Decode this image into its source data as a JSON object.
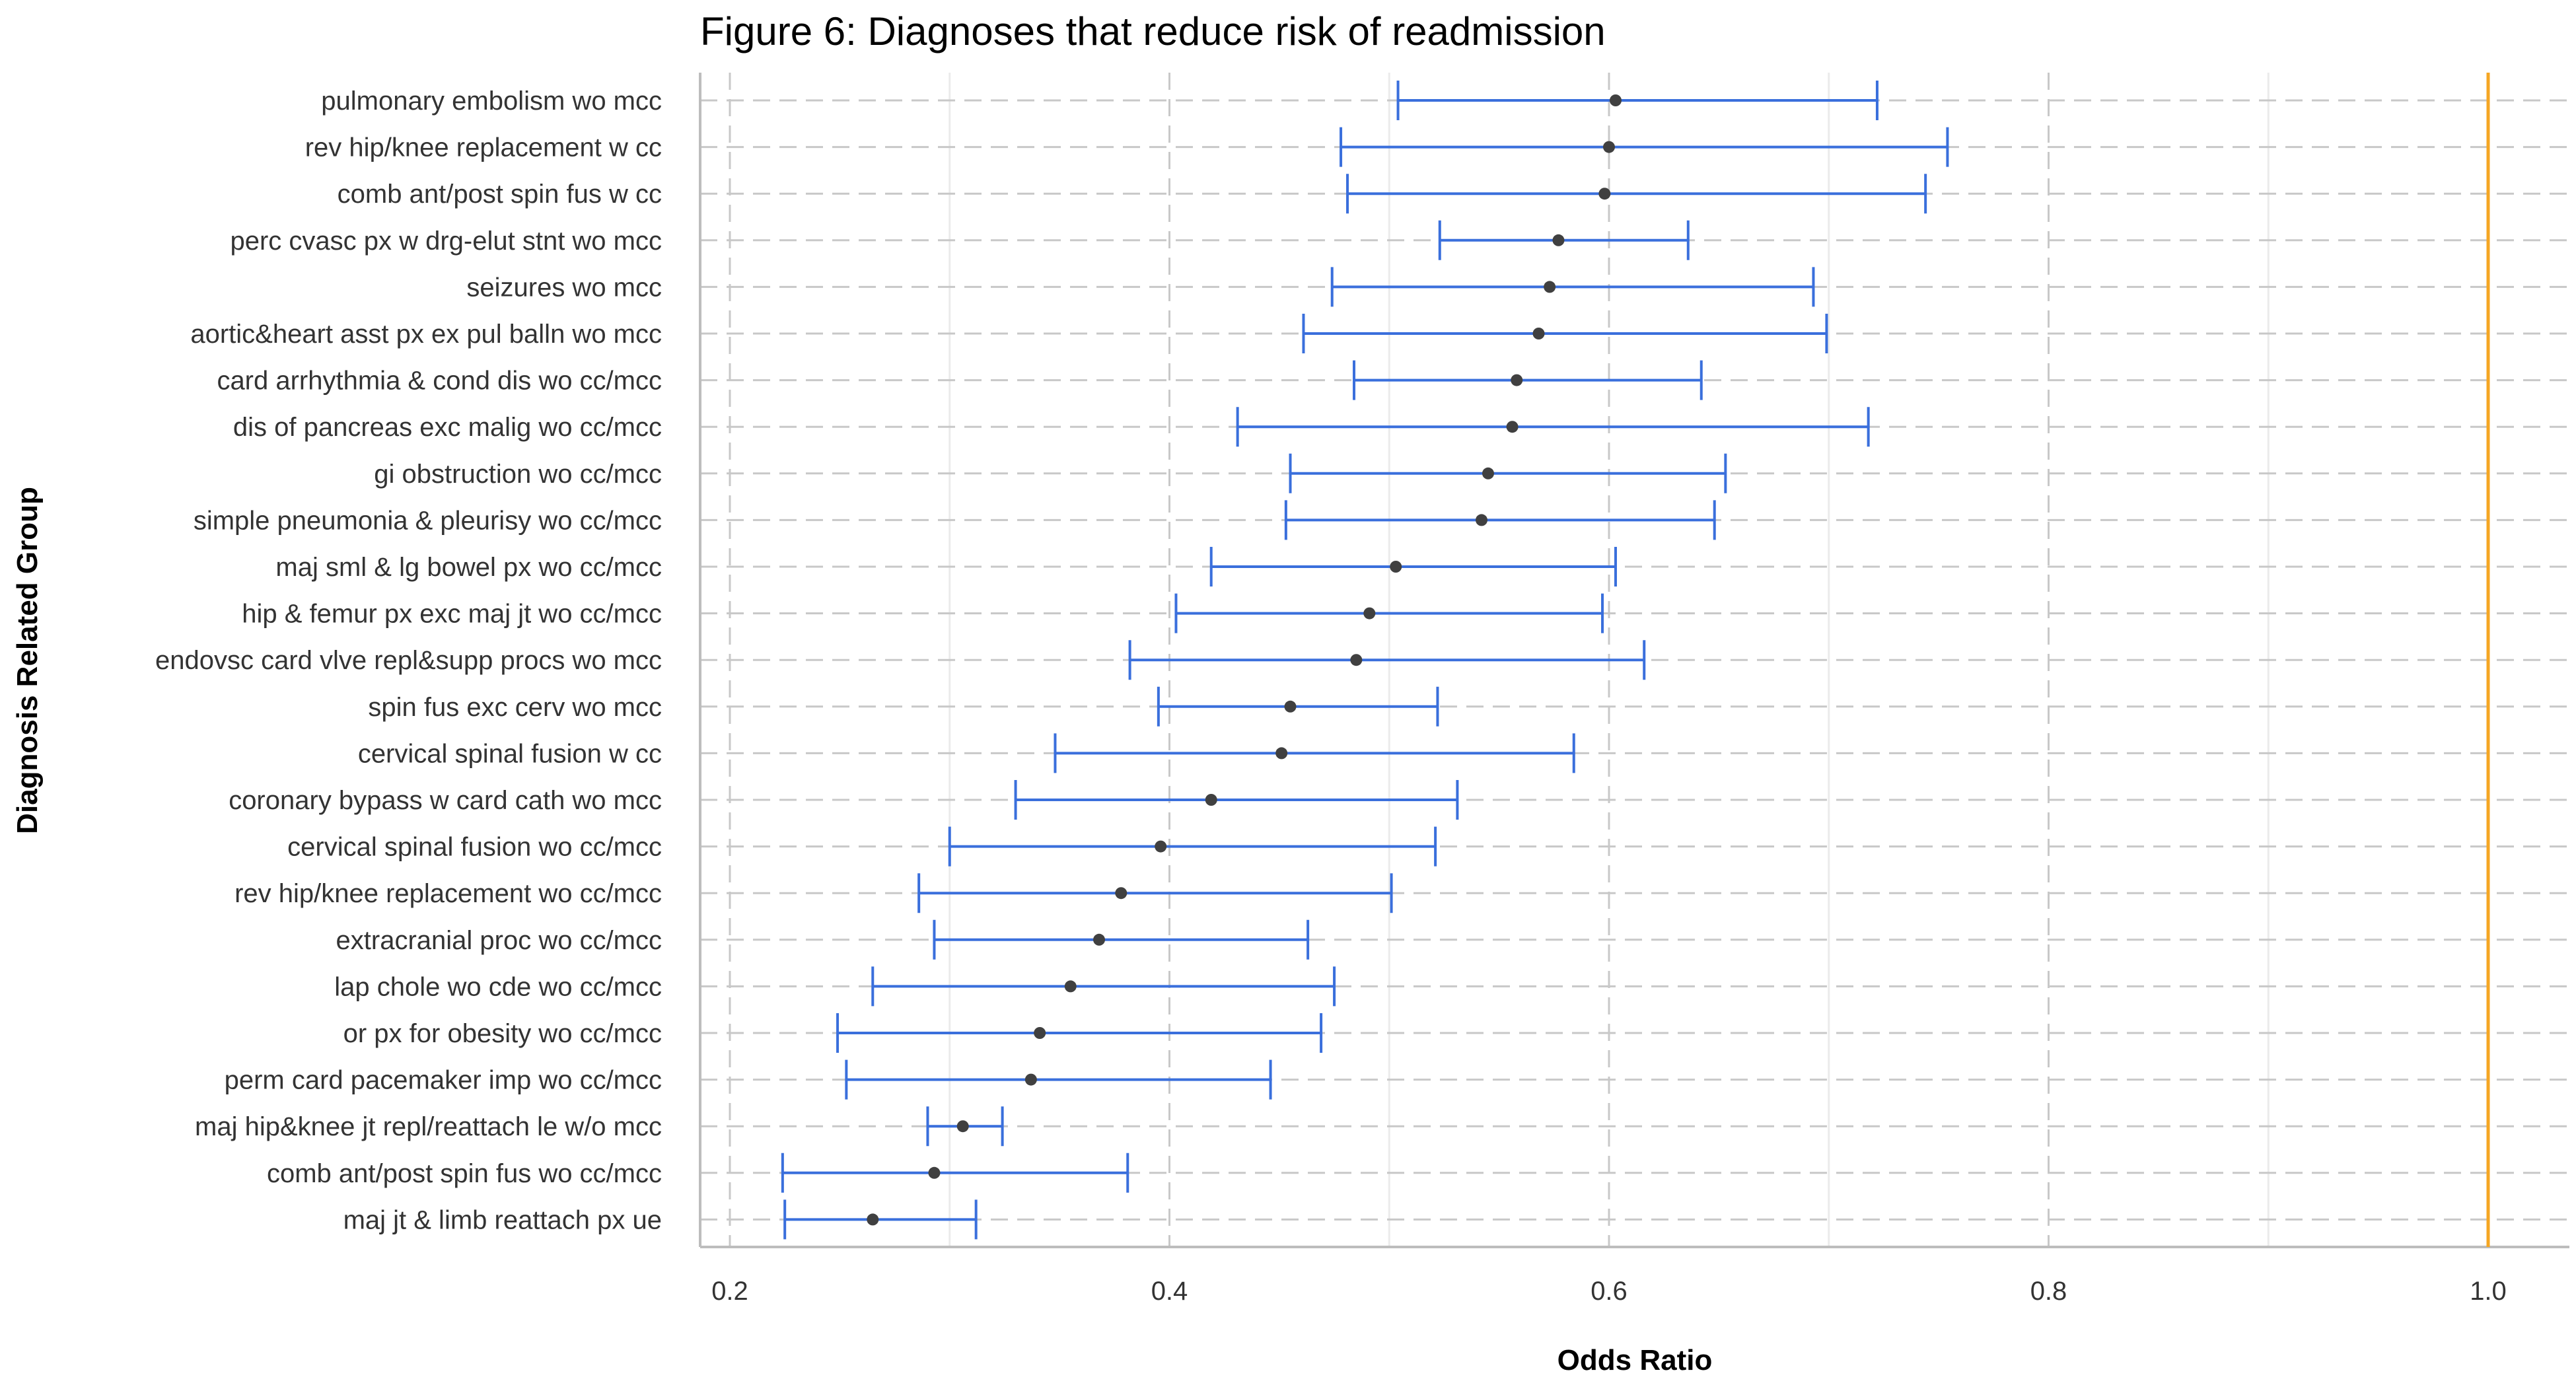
{
  "chart_data": {
    "type": "forest",
    "title": "Figure 6: Diagnoses that reduce risk of readmission",
    "xlabel": "Odds Ratio",
    "ylabel": "Diagnosis Related Group",
    "xlim": [
      0.2,
      1.0
    ],
    "xticks": [
      "0.2",
      "0.4",
      "0.6",
      "0.8",
      "1.0"
    ],
    "reference_line": 1.0,
    "grid": true,
    "colors": {
      "interval": "#3a6fdc",
      "point": "#404040",
      "reference": "#f5a623",
      "grid_major": "#c8c8c8",
      "grid_minor": "#ebebeb",
      "axis": "#bdbdbd"
    },
    "rows": [
      {
        "label": "pulmonary embolism wo mcc",
        "or": 0.603,
        "lo": 0.504,
        "hi": 0.722
      },
      {
        "label": "rev  hip/knee replacement w cc",
        "or": 0.6,
        "lo": 0.478,
        "hi": 0.754
      },
      {
        "label": "comb ant/post spin fus w cc",
        "or": 0.598,
        "lo": 0.481,
        "hi": 0.744
      },
      {
        "label": "perc cvasc px w drg-elut stnt wo mcc",
        "or": 0.577,
        "lo": 0.523,
        "hi": 0.636
      },
      {
        "label": "seizures wo mcc",
        "or": 0.573,
        "lo": 0.474,
        "hi": 0.693
      },
      {
        "label": "aortic&heart asst px ex pul balln wo mcc",
        "or": 0.568,
        "lo": 0.461,
        "hi": 0.699
      },
      {
        "label": "card arrhythmia & cond dis wo cc/mcc",
        "or": 0.558,
        "lo": 0.484,
        "hi": 0.642
      },
      {
        "label": "dis of pancreas exc malig wo cc/mcc",
        "or": 0.556,
        "lo": 0.431,
        "hi": 0.718
      },
      {
        "label": "gi obstruction wo cc/mcc",
        "or": 0.545,
        "lo": 0.455,
        "hi": 0.653
      },
      {
        "label": "simple pneumonia & pleurisy wo cc/mcc",
        "or": 0.542,
        "lo": 0.453,
        "hi": 0.648
      },
      {
        "label": "maj sml & lg bowel px wo cc/mcc",
        "or": 0.503,
        "lo": 0.419,
        "hi": 0.603
      },
      {
        "label": "hip & femur px exc maj jt wo cc/mcc",
        "or": 0.491,
        "lo": 0.403,
        "hi": 0.597
      },
      {
        "label": "endovsc card vlve repl&supp procs wo mcc",
        "or": 0.485,
        "lo": 0.382,
        "hi": 0.616
      },
      {
        "label": "spin fus exc cerv wo mcc",
        "or": 0.455,
        "lo": 0.395,
        "hi": 0.522
      },
      {
        "label": "cervical spinal fusion w cc",
        "or": 0.451,
        "lo": 0.348,
        "hi": 0.584
      },
      {
        "label": "coronary bypass w card cath wo mcc",
        "or": 0.419,
        "lo": 0.33,
        "hi": 0.531
      },
      {
        "label": "cervical spinal fusion wo cc/mcc",
        "or": 0.396,
        "lo": 0.3,
        "hi": 0.521
      },
      {
        "label": "rev  hip/knee replacement wo cc/mcc",
        "or": 0.378,
        "lo": 0.286,
        "hi": 0.501
      },
      {
        "label": "extracranial proc wo cc/mcc",
        "or": 0.368,
        "lo": 0.293,
        "hi": 0.463
      },
      {
        "label": "lap chole wo cde wo cc/mcc",
        "or": 0.355,
        "lo": 0.265,
        "hi": 0.475
      },
      {
        "label": "or px for obesity wo cc/mcc",
        "or": 0.341,
        "lo": 0.249,
        "hi": 0.469
      },
      {
        "label": "perm card pacemaker imp wo cc/mcc",
        "or": 0.337,
        "lo": 0.253,
        "hi": 0.446
      },
      {
        "label": "maj hip&knee jt repl/reattach le w/o mcc",
        "or": 0.306,
        "lo": 0.29,
        "hi": 0.324
      },
      {
        "label": "comb ant/post spin fus wo cc/mcc",
        "or": 0.293,
        "lo": 0.224,
        "hi": 0.381
      },
      {
        "label": "maj jt & limb reattach px ue",
        "or": 0.265,
        "lo": 0.225,
        "hi": 0.312
      }
    ]
  }
}
